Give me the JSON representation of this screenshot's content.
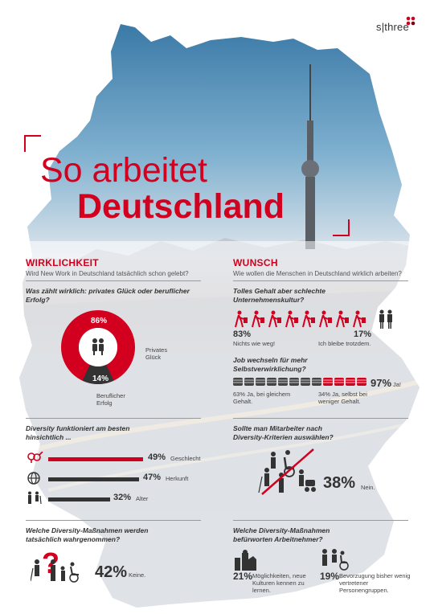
{
  "brand": "s|three",
  "title_line1": "So arbeitet",
  "title_line2": "Deutschland",
  "left": {
    "heading": "WIRKLICHKEIT",
    "subtitle": "Wird New Work in Deutschland tatsächlich schon gelebt?",
    "q1": "Was zählt wirklich: privates Glück oder beruflicher Erfolg?",
    "q1_private_pct": "86%",
    "q1_private_label": "Privates Glück",
    "q1_career_pct": "14%",
    "q1_career_label": "Beruflicher Erfolg",
    "q1_values": {
      "private": 86,
      "career": 14
    },
    "q2": "Diversity funktioniert am besten hinsichtlich ...",
    "diversity": [
      {
        "pct": "49%",
        "label": "Geschlecht",
        "value": 49,
        "icon": "gender-icon"
      },
      {
        "pct": "47%",
        "label": "Herkunft",
        "value": 47,
        "icon": "globe-icon"
      },
      {
        "pct": "32%",
        "label": "Alter",
        "value": 32,
        "icon": "age-icon"
      }
    ],
    "q3": "Welche Diversity-Maßnahmen werden tatsächlich wahrgenommen?",
    "q3_pct": "42%",
    "q3_label": "Keine."
  },
  "right": {
    "heading": "WUNSCH",
    "subtitle": "Wie wollen die Menschen in Deutschland wirklich arbeiten?",
    "q1": "Tolles Gehalt aber schlechte Unternehmenskultur?",
    "q1_a_pct": "83%",
    "q1_a_label": "Nichts wie weg!",
    "q1_b_pct": "17%",
    "q1_b_label": "Ich bleibe trotzdem.",
    "q2": "Job wechseln für mehr Selbstverwirklichung?",
    "q2_pct": "97%",
    "q2_pct_label": "Ja!",
    "q2_a": "63% Ja, bei gleichem Gehalt.",
    "q2_b": "34% Ja, selbst bei weniger Gehalt.",
    "q3": "Sollte man Mitarbeiter nach Diversity-Kriterien auswählen?",
    "q3_pct": "38%",
    "q3_label": "Nein.",
    "q4": "Welche Diversity-Maßnahmen befürworten Arbeitnehmer?",
    "q4_a_pct": "21%",
    "q4_a_label": "Möglichkeiten, neue Kulturen kennen zu lernen.",
    "q4_b_pct": "19%",
    "q4_b_label": "Bevorzugung bisher wenig vertretener Personengruppen."
  },
  "colors": {
    "accent": "#d2001e",
    "dark": "#333333",
    "gray": "#9a9a9a"
  }
}
